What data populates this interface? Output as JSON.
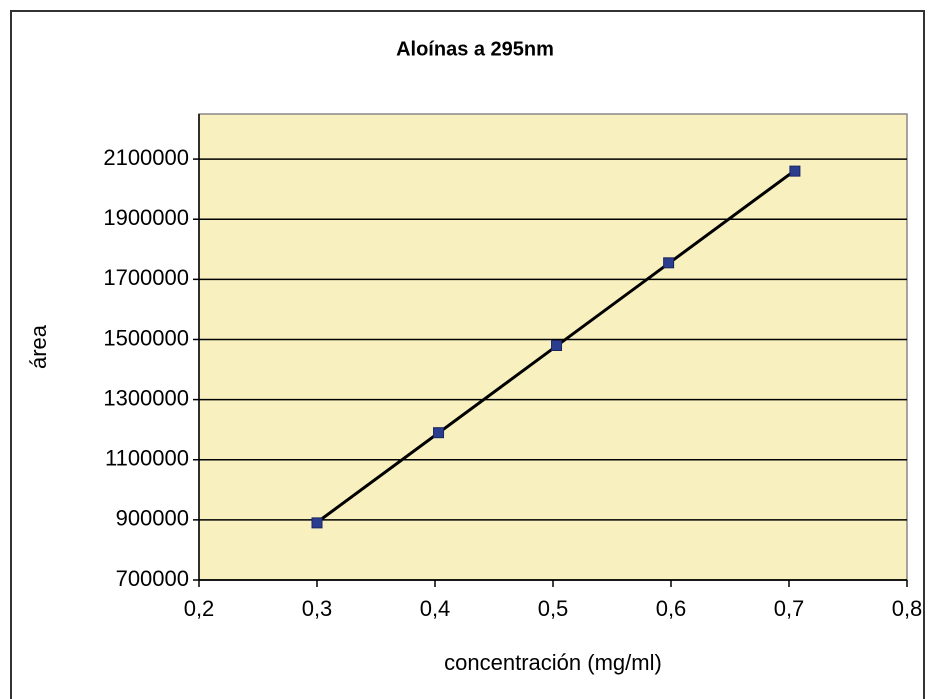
{
  "chart_data": {
    "type": "scatter",
    "title": "Aloínas a 295nm",
    "x_label": "concentración (mg/ml)",
    "y_label": "área",
    "series": [
      {
        "color": "#2b3d8f",
        "x": [
          0.3,
          0.403,
          0.503,
          0.598,
          0.705
        ],
        "values": [
          890000,
          1190000,
          1480000,
          1755000,
          2060000
        ]
      }
    ],
    "trendline": true,
    "xlim": [
      0.2,
      0.8
    ],
    "xticks": [
      {
        "value": 0.2,
        "label": "0,2"
      },
      {
        "value": 0.3,
        "label": "0,3"
      },
      {
        "value": 0.4,
        "label": "0,4"
      },
      {
        "value": 0.5,
        "label": "0,5"
      },
      {
        "value": 0.6,
        "label": "0,6"
      },
      {
        "value": 0.7,
        "label": "0,7"
      },
      {
        "value": 0.8,
        "label": "0,8"
      }
    ],
    "ylim": [
      700000,
      2250000
    ],
    "yticks": [
      700000,
      900000,
      1100000,
      1300000,
      1500000,
      1700000,
      1900000,
      2100000
    ],
    "grid": true
  }
}
